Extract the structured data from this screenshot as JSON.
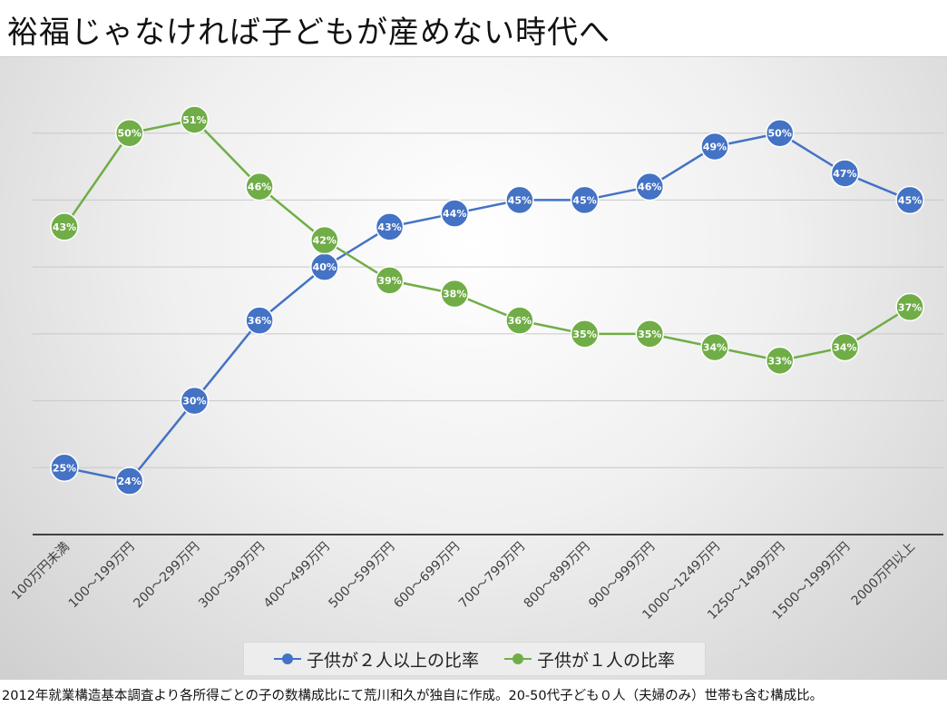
{
  "title": "裕福じゃなければ子どもが産めない時代へ",
  "footer_note": "2012年就業構造基本調査より各所得ごとの子の数構成比にて荒川和久が独自に作成。20-50代子ども０人（夫婦のみ）世帯も含む構成比。",
  "colors": {
    "series1": "#4472c4",
    "series2": "#70ad47"
  },
  "chart_data": {
    "type": "line",
    "title": "",
    "xlabel": "",
    "ylabel": "",
    "ylim": [
      0.2,
      0.55
    ],
    "grid": true,
    "legend": "bottom",
    "categories": [
      "100万円未満",
      "100～199万円",
      "200～299万円",
      "300～399万円",
      "400～499万円",
      "500～599万円",
      "600～699万円",
      "700～799万円",
      "800～899万円",
      "900～999万円",
      "1000～1249万円",
      "1250～1499万円",
      "1500～1999万円",
      "2000万円以上"
    ],
    "series": [
      {
        "name": "子供が２人以上の比率",
        "color": "#4472c4",
        "values": [
          0.25,
          0.24,
          0.3,
          0.36,
          0.4,
          0.43,
          0.44,
          0.45,
          0.45,
          0.46,
          0.49,
          0.5,
          0.47,
          0.45
        ],
        "labels": [
          "25%",
          "24%",
          "30%",
          "36%",
          "40%",
          "43%",
          "44%",
          "45%",
          "45%",
          "46%",
          "49%",
          "50%",
          "47%",
          "45%"
        ]
      },
      {
        "name": "子供が１人の比率",
        "color": "#70ad47",
        "values": [
          0.43,
          0.5,
          0.51,
          0.46,
          0.42,
          0.39,
          0.38,
          0.36,
          0.35,
          0.35,
          0.34,
          0.33,
          0.34,
          0.37
        ],
        "labels": [
          "43%",
          "50%",
          "51%",
          "46%",
          "42%",
          "39%",
          "38%",
          "36%",
          "35%",
          "35%",
          "34%",
          "33%",
          "34%",
          "37%"
        ]
      }
    ]
  }
}
